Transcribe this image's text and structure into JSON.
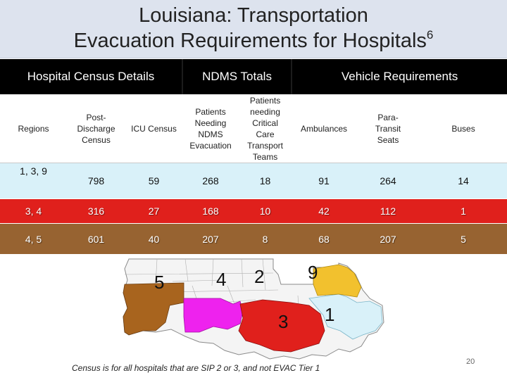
{
  "slide": {
    "title_line1": "Louisiana:  Transportation",
    "title_line2": "Evacuation Requirements for Hospitals",
    "title_superscript": "6",
    "footnote": "Census is for all hospitals that are SIP 2 or 3, and not EVAC Tier 1",
    "page_number": "20"
  },
  "table": {
    "groups": [
      "Hospital Census Details",
      "NDMS Totals",
      "Vehicle Requirements"
    ],
    "columns": [
      "Regions",
      "Post-Discharge Census",
      "ICU Census",
      "Patients Needing NDMS Evacuation",
      "Patients needing Critical Care Transport Teams",
      "Ambulances",
      "Para-Transit Seats",
      "Buses"
    ],
    "rows": [
      [
        "1, 3, 9",
        "798",
        "59",
        "268",
        "18",
        "91",
        "264",
        "14"
      ],
      [
        "3, 4",
        "316",
        "27",
        "168",
        "10",
        "42",
        "112",
        "1"
      ],
      [
        "4, 5",
        "601",
        "40",
        "207",
        "8",
        "68",
        "207",
        "5"
      ]
    ],
    "row_colors": [
      "#d9f1f9",
      "#e0201c",
      "#976331"
    ]
  },
  "map": {
    "region_labels": [
      "5",
      "4",
      "2",
      "9",
      "1",
      "3"
    ],
    "region_colors": {
      "5": "#a8641e",
      "3": "#e0201c",
      "1": "#d9f1f9",
      "9": "#f2c12e",
      "other": "#ee22ee"
    }
  }
}
